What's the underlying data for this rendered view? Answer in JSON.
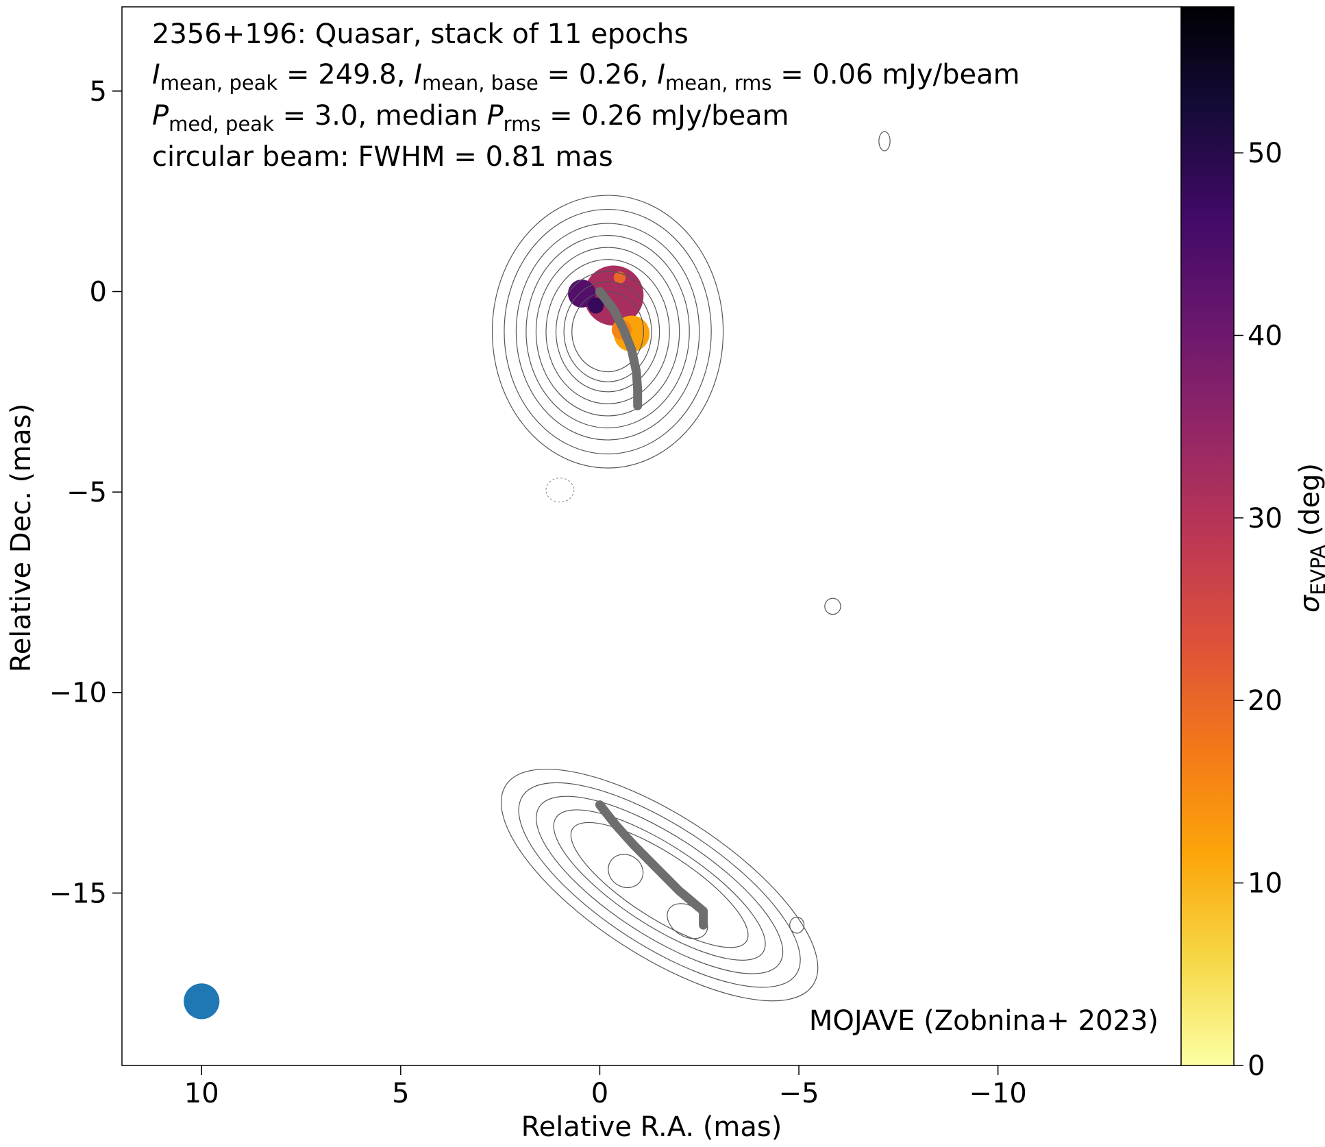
{
  "chart_data": {
    "type": "contour",
    "annotation": {
      "line1": "2356+196: Quasar, stack of 11 epochs",
      "line2": {
        "I": "I",
        "sub_peak": "mean, peak",
        "peak_value": " = 249.8, ",
        "sub_base": "mean, base",
        "base_value": " = 0.26, ",
        "sub_rms": "mean, rms",
        "rms_value": " = 0.06 mJy/beam"
      },
      "line3": {
        "P": "P",
        "sub_peak": "med, peak",
        "peak_value": " = 3.0, median ",
        "sub_rms": "rms",
        "rms_value": " = 0.26 mJy/beam"
      },
      "line4": "circular beam: FWHM = 0.81 mas"
    },
    "credit": "MOJAVE (Zobnina+ 2023)",
    "xlabel": "Relative R.A. (mas)",
    "ylabel": "Relative Dec. (mas)",
    "xlim": [
      12,
      -14.6
    ],
    "ylim": [
      -19.3,
      7.1
    ],
    "xticks": [
      {
        "value": 10,
        "label": "10"
      },
      {
        "value": 5,
        "label": "5"
      },
      {
        "value": 0,
        "label": "0"
      },
      {
        "value": -5,
        "label": "−5"
      },
      {
        "value": -10,
        "label": "−10"
      }
    ],
    "yticks": [
      {
        "value": 5,
        "label": "5"
      },
      {
        "value": 0,
        "label": "0"
      },
      {
        "value": -5,
        "label": "−5"
      },
      {
        "value": -10,
        "label": "−10"
      },
      {
        "value": -15,
        "label": "−15"
      }
    ],
    "colorbar": {
      "label_main": "σ",
      "label_sub": "EVPA",
      "label_unit": " (deg)",
      "range": [
        0,
        58
      ],
      "colormap": "inferno_r",
      "ticks": [
        {
          "value": 0,
          "label": "0"
        },
        {
          "value": 10,
          "label": "10"
        },
        {
          "value": 20,
          "label": "20"
        },
        {
          "value": 30,
          "label": "30"
        },
        {
          "value": 40,
          "label": "40"
        },
        {
          "value": 50,
          "label": "50"
        }
      ],
      "stops": [
        "#fcffa4",
        "#f6d746",
        "#fca50a",
        "#f37819",
        "#dd513a",
        "#bc3754",
        "#932667",
        "#6a176e",
        "#420a68",
        "#160b39",
        "#000004"
      ]
    },
    "beam": {
      "x": 10,
      "y": -17.7,
      "fwhm": 0.81,
      "color": "#1f77b4"
    },
    "contour_color": "#555555",
    "ridge_color": "#6e6e6e",
    "core_contours": {
      "center": [
        -0.2,
        -1.0
      ],
      "radii": [
        [
          2.9,
          3.4
        ],
        [
          2.6,
          3.05
        ],
        [
          2.3,
          2.7
        ],
        [
          2.05,
          2.4
        ],
        [
          1.8,
          2.1
        ],
        [
          1.55,
          1.8
        ],
        [
          1.3,
          1.5
        ],
        [
          1.1,
          1.25
        ],
        [
          0.9,
          1.0
        ]
      ]
    },
    "jet_contours": {
      "center": [
        -1.5,
        -14.8
      ],
      "angle_deg": 33,
      "radii": [
        [
          4.6,
          1.75
        ],
        [
          4.1,
          1.5
        ],
        [
          3.6,
          1.25
        ],
        [
          3.1,
          1.0
        ],
        [
          2.6,
          0.8
        ]
      ]
    },
    "knots": [
      {
        "center": [
          -0.65,
          -14.45
        ],
        "radii": [
          0.45,
          0.4
        ]
      },
      {
        "center": [
          -2.2,
          -15.7
        ],
        "radii": [
          0.55,
          0.38
        ]
      }
    ],
    "isolated_contours": [
      {
        "center": [
          -7.15,
          3.75
        ],
        "radii": [
          0.14,
          0.24
        ],
        "dashed": false
      },
      {
        "center": [
          -5.85,
          -7.85
        ],
        "radii": [
          0.2,
          0.2
        ],
        "dashed": false
      },
      {
        "center": [
          -4.95,
          -15.8
        ],
        "radii": [
          0.18,
          0.2
        ],
        "dashed": false
      },
      {
        "center": [
          1.0,
          -4.95
        ],
        "radii": [
          0.35,
          0.3
        ],
        "dashed": true
      }
    ],
    "evpa_sigma_patches": [
      {
        "center": [
          -0.35,
          -0.1
        ],
        "r": 0.75,
        "value": 32
      },
      {
        "center": [
          0.45,
          -0.05
        ],
        "r": 0.35,
        "value": 44
      },
      {
        "center": [
          0.1,
          -0.35
        ],
        "r": 0.2,
        "value": 48
      },
      {
        "center": [
          -0.5,
          0.35
        ],
        "r": 0.15,
        "value": 20
      },
      {
        "center": [
          -0.8,
          -1.05
        ],
        "r": 0.45,
        "value": 12
      },
      {
        "center": [
          -0.55,
          -0.95
        ],
        "r": 0.25,
        "value": 16
      }
    ],
    "ridge_lines": [
      {
        "points": [
          [
            0,
            0
          ],
          [
            -0.35,
            -0.45
          ],
          [
            -0.6,
            -0.95
          ],
          [
            -0.8,
            -1.45
          ],
          [
            -0.92,
            -2.0
          ],
          [
            -0.95,
            -2.45
          ],
          [
            -0.95,
            -2.85
          ]
        ]
      },
      {
        "points": [
          [
            0,
            -12.8
          ],
          [
            -0.4,
            -13.3
          ],
          [
            -0.85,
            -13.8
          ],
          [
            -1.4,
            -14.35
          ],
          [
            -2.0,
            -14.95
          ],
          [
            -2.6,
            -15.45
          ],
          [
            -2.6,
            -15.8
          ]
        ]
      }
    ]
  }
}
